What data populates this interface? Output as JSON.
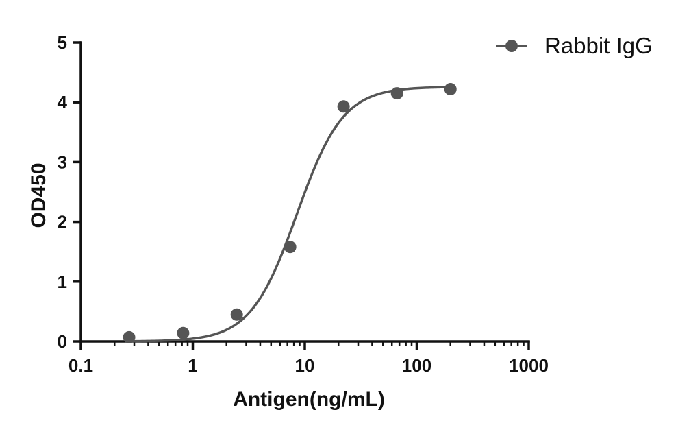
{
  "chart_data": {
    "type": "scatter",
    "title": "",
    "xlabel": "Antigen(ng/mL)",
    "ylabel": "OD450",
    "x_scale": "log",
    "xlim": [
      0.1,
      1000
    ],
    "ylim": [
      0,
      5
    ],
    "x_ticks": [
      0.1,
      1,
      10,
      100,
      1000
    ],
    "x_tick_labels": [
      "0.1",
      "1",
      "10",
      "100",
      "1000"
    ],
    "y_ticks": [
      0,
      1,
      2,
      3,
      4,
      5
    ],
    "y_tick_labels": [
      "0",
      "1",
      "2",
      "3",
      "4",
      "5"
    ],
    "grid": false,
    "legend_position": "top-right",
    "series": [
      {
        "name": "Rabbit  IgG",
        "color": "#555555",
        "x": [
          0.27,
          0.82,
          2.47,
          7.4,
          22.2,
          66.7,
          200
        ],
        "y": [
          0.07,
          0.14,
          0.45,
          1.58,
          3.93,
          4.15,
          4.22
        ],
        "fit": {
          "model": "4PL",
          "bottom": 0.0,
          "top": 4.26,
          "ec50": 8.5,
          "hill": 2.1
        }
      }
    ]
  }
}
